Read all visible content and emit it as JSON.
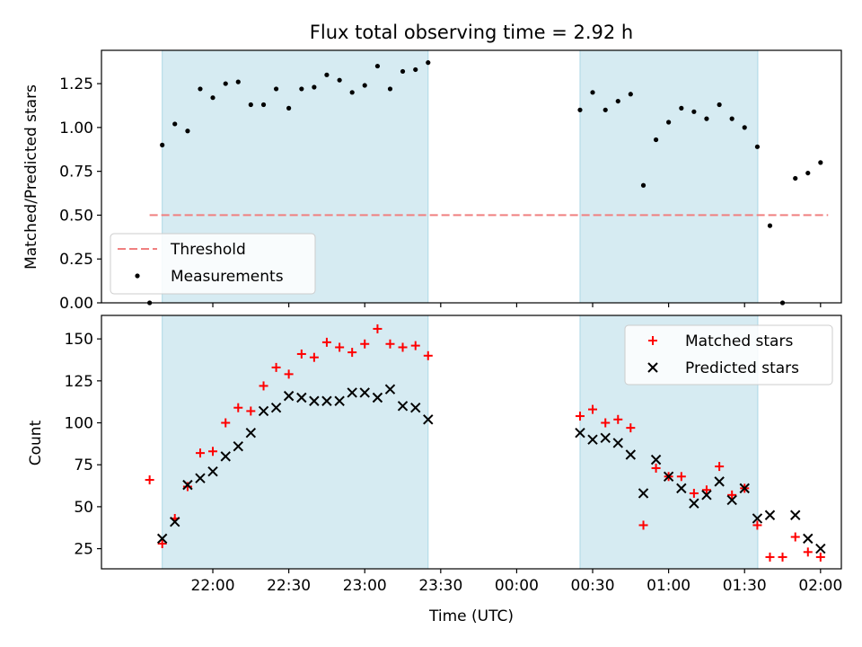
{
  "chart_data": [
    {
      "type": "scatter",
      "title": "Flux total observing time = 2.92 h",
      "ylabel": "Matched/Predicted stars",
      "xlabel": "",
      "x_unit": "hours since 21:40 UTC",
      "xlim": [
        -0.4,
        4.47
      ],
      "ylim": [
        0,
        1.44
      ],
      "yticks": [
        "0.00",
        "0.25",
        "0.50",
        "0.75",
        "1.00",
        "1.25"
      ],
      "yticks_values": [
        0,
        0.25,
        0.5,
        0.75,
        1.0,
        1.25
      ],
      "shaded_intervals": [
        [
          0.0,
          1.75
        ],
        [
          2.75,
          3.92
        ]
      ],
      "threshold": {
        "name": "Threshold",
        "value": 0.5,
        "x_range": [
          -0.083,
          4.383
        ],
        "color": "#f08080"
      },
      "series": [
        {
          "name": "Measurements",
          "color": "#000000",
          "x": [
            -0.083,
            0.0,
            0.083,
            0.167,
            0.25,
            0.333,
            0.417,
            0.5,
            0.583,
            0.667,
            0.75,
            0.833,
            0.917,
            1.0,
            1.083,
            1.167,
            1.25,
            1.333,
            1.417,
            1.5,
            1.583,
            1.667,
            1.75,
            2.75,
            2.833,
            2.917,
            3.0,
            3.083,
            3.167,
            3.25,
            3.333,
            3.417,
            3.5,
            3.583,
            3.667,
            3.75,
            3.833,
            3.917,
            4.0,
            4.083,
            4.167,
            4.25,
            4.333
          ],
          "values": [
            0.0,
            0.9,
            1.02,
            0.98,
            1.22,
            1.17,
            1.25,
            1.26,
            1.13,
            1.13,
            1.22,
            1.11,
            1.22,
            1.23,
            1.3,
            1.27,
            1.2,
            1.24,
            1.35,
            1.22,
            1.32,
            1.33,
            1.37,
            1.1,
            1.2,
            1.1,
            1.15,
            1.19,
            0.67,
            0.93,
            1.03,
            1.11,
            1.09,
            1.05,
            1.13,
            1.05,
            1.0,
            0.89,
            0.44,
            0.0,
            0.71,
            0.74,
            0.8
          ]
        }
      ],
      "legend": {
        "placement": "lower-left",
        "entries": [
          "Threshold",
          "Measurements"
        ]
      }
    },
    {
      "type": "scatter",
      "xlabel": "Time (UTC)",
      "ylabel": "Count",
      "x_unit": "hours since 21:40 UTC",
      "xlim": [
        -0.4,
        4.47
      ],
      "ylim": [
        13,
        164
      ],
      "yticks": [
        "25",
        "50",
        "75",
        "100",
        "125",
        "150"
      ],
      "yticks_values": [
        25,
        50,
        75,
        100,
        125,
        150
      ],
      "xticks": [
        "22:00",
        "22:30",
        "23:00",
        "23:30",
        "00:00",
        "00:30",
        "01:00",
        "01:30",
        "02:00"
      ],
      "xticks_values": [
        0.333,
        0.833,
        1.333,
        1.833,
        2.333,
        2.833,
        3.333,
        3.833,
        4.333
      ],
      "shaded_intervals": [
        [
          0.0,
          1.75
        ],
        [
          2.75,
          3.92
        ]
      ],
      "series": [
        {
          "name": "Matched stars",
          "marker": "plus",
          "color": "#ff0000",
          "x": [
            -0.083,
            0.0,
            0.083,
            0.167,
            0.25,
            0.333,
            0.417,
            0.5,
            0.583,
            0.667,
            0.75,
            0.833,
            0.917,
            1.0,
            1.083,
            1.167,
            1.25,
            1.333,
            1.417,
            1.5,
            1.583,
            1.667,
            1.75,
            2.75,
            2.833,
            2.917,
            3.0,
            3.083,
            3.167,
            3.25,
            3.333,
            3.417,
            3.5,
            3.583,
            3.667,
            3.75,
            3.833,
            3.917,
            4.0,
            4.083,
            4.167,
            4.25,
            4.333
          ],
          "values": [
            66,
            28,
            43,
            62,
            82,
            83,
            100,
            109,
            107,
            122,
            133,
            129,
            141,
            139,
            148,
            145,
            142,
            147,
            156,
            147,
            145,
            146,
            140,
            104,
            108,
            100,
            102,
            97,
            39,
            73,
            68,
            68,
            58,
            60,
            74,
            57,
            61,
            39,
            20,
            20,
            32,
            23,
            20
          ]
        },
        {
          "name": "Predicted stars",
          "marker": "x",
          "color": "#000000",
          "x": [
            0.0,
            0.083,
            0.167,
            0.25,
            0.333,
            0.417,
            0.5,
            0.583,
            0.667,
            0.75,
            0.833,
            0.917,
            1.0,
            1.083,
            1.167,
            1.25,
            1.333,
            1.417,
            1.5,
            1.583,
            1.667,
            1.75,
            2.75,
            2.833,
            2.917,
            3.0,
            3.083,
            3.167,
            3.25,
            3.333,
            3.417,
            3.5,
            3.583,
            3.667,
            3.75,
            3.833,
            3.917,
            4.0,
            4.167,
            4.25,
            4.333
          ],
          "values": [
            31,
            41,
            63,
            67,
            71,
            80,
            86,
            94,
            107,
            109,
            116,
            115,
            113,
            113,
            113,
            118,
            118,
            115,
            120,
            110,
            109,
            102,
            94,
            90,
            91,
            88,
            81,
            58,
            78,
            68,
            61,
            52,
            57,
            65,
            54,
            61,
            43,
            45,
            45,
            31,
            25
          ]
        }
      ],
      "legend": {
        "placement": "upper-right",
        "entries": [
          "Matched stars",
          "Predicted stars"
        ]
      }
    }
  ]
}
